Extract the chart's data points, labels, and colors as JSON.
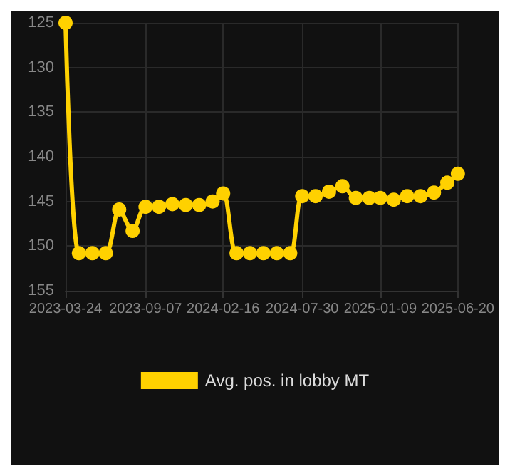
{
  "chart_data": {
    "type": "line",
    "x": [
      "2023-03-24",
      "2023-04-21",
      "2023-05-19",
      "2023-06-16",
      "2023-07-14",
      "2023-08-11",
      "2023-09-07",
      "2023-10-05",
      "2023-11-02",
      "2023-11-30",
      "2023-12-28",
      "2024-01-25",
      "2024-02-16",
      "2024-03-15",
      "2024-04-12",
      "2024-05-10",
      "2024-06-07",
      "2024-07-05",
      "2024-07-30",
      "2024-08-27",
      "2024-09-24",
      "2024-10-22",
      "2024-11-19",
      "2024-12-17",
      "2025-01-09",
      "2025-02-06",
      "2025-03-06",
      "2025-04-03",
      "2025-05-01",
      "2025-05-29",
      "2025-06-20"
    ],
    "series": [
      {
        "name": "Avg. pos. in lobby MT",
        "color": "#ffd100",
        "values": [
          125,
          150.8,
          150.8,
          150.8,
          145.9,
          148.3,
          145.6,
          145.6,
          145.3,
          145.4,
          145.4,
          145.0,
          144.1,
          150.8,
          150.8,
          150.8,
          150.8,
          150.8,
          144.4,
          144.4,
          143.9,
          143.3,
          144.6,
          144.6,
          144.6,
          144.8,
          144.4,
          144.4,
          144.0,
          142.9,
          141.9
        ]
      }
    ],
    "ylim": [
      155,
      125
    ],
    "yticks": [
      125,
      130,
      135,
      140,
      145,
      150,
      155
    ],
    "xlim": [
      "2023-03-24",
      "2025-06-20"
    ],
    "xticks": [
      "2023-03-24",
      "2023-09-07",
      "2024-02-16",
      "2024-07-30",
      "2025-01-09",
      "2025-06-20"
    ],
    "grid": true,
    "legend": "bottom",
    "marker": "circle",
    "line_style": "solid"
  }
}
